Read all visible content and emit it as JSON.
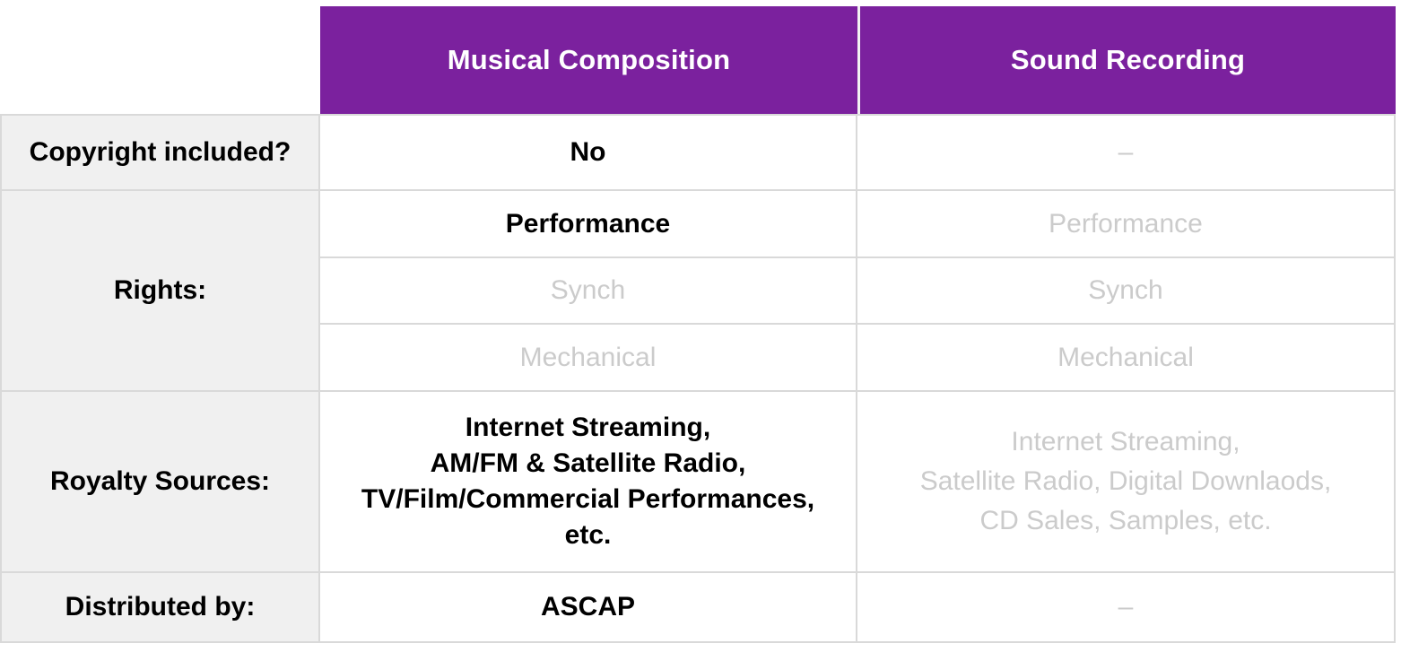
{
  "colors": {
    "header_bg": "#7B219E",
    "header_text": "#FFFFFF",
    "label_bg": "#F0F0F0",
    "grid_border": "#D9D9D9",
    "header_divider": "#F2F2F2",
    "muted_text": "#CBCBCB",
    "text": "#000000"
  },
  "table": {
    "headers": {
      "musical_composition": "Musical Composition",
      "sound_recording": "Sound Recording"
    },
    "rows": {
      "copyright": {
        "label": "Copyright included?",
        "musical_composition": "No",
        "sound_recording": "–"
      },
      "rights": {
        "label": "Rights:",
        "musical_composition": {
          "performance": "Performance",
          "synch": "Synch",
          "mechanical": "Mechanical"
        },
        "sound_recording": {
          "performance": "Performance",
          "synch": "Synch",
          "mechanical": "Mechanical"
        }
      },
      "royalty_sources": {
        "label": "Royalty Sources:",
        "musical_composition_lines": [
          "Internet Streaming,",
          "AM/FM & Satellite Radio,",
          "TV/Film/Commercial Performances,",
          "etc."
        ],
        "sound_recording_lines": [
          "Internet Streaming,",
          "Satellite Radio, Digital Downlaods,",
          "CD Sales, Samples, etc."
        ]
      },
      "distributed_by": {
        "label": "Distributed by:",
        "musical_composition": "ASCAP",
        "sound_recording": "–"
      }
    }
  },
  "chart_data": {
    "type": "table",
    "columns": [
      "Musical Composition",
      "Sound Recording"
    ],
    "rows": [
      {
        "label": "Copyright included?",
        "musical_composition": {
          "value": "No",
          "style": "emphasized"
        },
        "sound_recording": {
          "value": "–",
          "style": "muted"
        }
      },
      {
        "label": "Rights:",
        "musical_composition": [
          {
            "value": "Performance",
            "style": "emphasized"
          },
          {
            "value": "Synch",
            "style": "muted"
          },
          {
            "value": "Mechanical",
            "style": "muted"
          }
        ],
        "sound_recording": [
          {
            "value": "Performance",
            "style": "muted"
          },
          {
            "value": "Synch",
            "style": "muted"
          },
          {
            "value": "Mechanical",
            "style": "muted"
          }
        ]
      },
      {
        "label": "Royalty Sources:",
        "musical_composition": {
          "value": "Internet Streaming, AM/FM & Satellite Radio, TV/Film/Commercial Performances, etc.",
          "style": "emphasized"
        },
        "sound_recording": {
          "value": "Internet Streaming, Satellite Radio, Digital Downlaods, CD Sales, Samples, etc.",
          "style": "muted"
        }
      },
      {
        "label": "Distributed by:",
        "musical_composition": {
          "value": "ASCAP",
          "style": "emphasized"
        },
        "sound_recording": {
          "value": "–",
          "style": "muted"
        }
      }
    ],
    "layout_hints": {
      "header_style": "purple background, white bold text",
      "emphasized": "bold black text = applies",
      "muted": "light gray text = not applicable"
    }
  }
}
